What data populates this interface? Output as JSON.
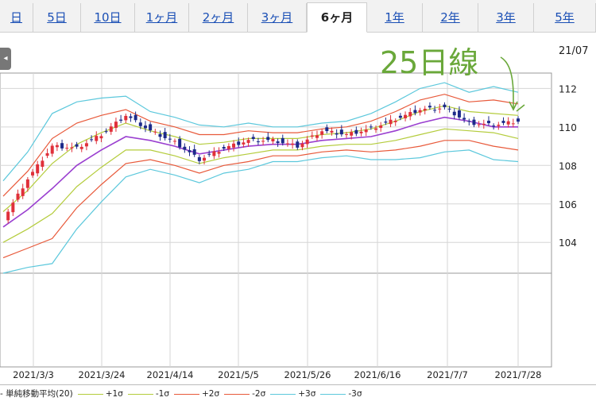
{
  "tabs": [
    {
      "label": "日",
      "active": false
    },
    {
      "label": "5日",
      "active": false
    },
    {
      "label": "10日",
      "active": false
    },
    {
      "label": "1ヶ月",
      "active": false
    },
    {
      "label": "2ヶ月",
      "active": false
    },
    {
      "label": "3ヶ月",
      "active": false
    },
    {
      "label": "6ヶ月",
      "active": true
    },
    {
      "label": "1年",
      "active": false
    },
    {
      "label": "2年",
      "active": false
    },
    {
      "label": "3年",
      "active": false
    },
    {
      "label": "5年",
      "active": false
    }
  ],
  "date_corner": "21/07",
  "annotation": "25日線",
  "colors": {
    "up_candle": "#e0303a",
    "down_candle": "#1c2a8a",
    "sma": "#9a3fd0",
    "sigma1": "#b4cc3c",
    "sigma2": "#e8593a",
    "sigma3": "#5cc8dc",
    "annotation": "#6aa83a"
  },
  "legend": [
    {
      "label": "単純移動平均(20)",
      "color": "#9a3fd0"
    },
    {
      "label": "+1σ",
      "color": "#b4cc3c"
    },
    {
      "label": "-1σ",
      "color": "#b4cc3c"
    },
    {
      "label": "+2σ",
      "color": "#e8593a"
    },
    {
      "label": "-2σ",
      "color": "#e8593a"
    },
    {
      "label": "+3σ",
      "color": "#5cc8dc"
    },
    {
      "label": "-3σ",
      "color": "#5cc8dc"
    }
  ],
  "chart_data": {
    "type": "line",
    "title": "",
    "xlabel": "",
    "ylabel": "",
    "ylim": [
      102.4,
      112.8
    ],
    "y_ticks": [
      104,
      106,
      108,
      110,
      112
    ],
    "x_tick_labels": [
      "2021/3/3",
      "2021/3/24",
      "2021/4/14",
      "2021/5/5",
      "2021/5/26",
      "2021/6/16",
      "2021/7/7",
      "2021/7/28"
    ],
    "grid": true,
    "x": [
      "2021/2/17",
      "2021/3/3",
      "2021/3/10",
      "2021/3/17",
      "2021/3/24",
      "2021/3/31",
      "2021/4/7",
      "2021/4/14",
      "2021/4/21",
      "2021/4/28",
      "2021/5/5",
      "2021/5/12",
      "2021/5/19",
      "2021/5/26",
      "2021/6/2",
      "2021/6/9",
      "2021/6/16",
      "2021/6/23",
      "2021/6/30",
      "2021/7/7",
      "2021/7/14",
      "2021/7/21"
    ],
    "close": [
      105.2,
      107.3,
      109.0,
      108.9,
      109.6,
      110.6,
      109.8,
      109.2,
      108.3,
      108.9,
      109.3,
      109.3,
      109.0,
      109.8,
      109.6,
      109.9,
      110.4,
      110.9,
      111.0,
      110.2,
      110.1,
      110.3
    ],
    "series": [
      {
        "name": "単純移動平均(20)",
        "values": [
          104.8,
          105.7,
          106.8,
          108.0,
          108.8,
          109.5,
          109.3,
          109.0,
          108.6,
          108.8,
          109.0,
          109.1,
          109.1,
          109.3,
          109.4,
          109.5,
          109.8,
          110.2,
          110.5,
          110.3,
          110.0,
          110.0
        ]
      },
      {
        "name": "+1σ",
        "values": [
          105.6,
          106.7,
          108.1,
          109.1,
          109.7,
          110.2,
          109.8,
          109.5,
          109.1,
          109.2,
          109.4,
          109.4,
          109.4,
          109.6,
          109.7,
          109.9,
          110.3,
          110.8,
          111.1,
          110.8,
          110.7,
          110.6
        ]
      },
      {
        "name": "-1σ",
        "values": [
          104.0,
          104.7,
          105.5,
          106.9,
          107.9,
          108.8,
          108.8,
          108.5,
          108.1,
          108.4,
          108.6,
          108.8,
          108.8,
          109.0,
          109.1,
          109.1,
          109.3,
          109.6,
          109.9,
          109.8,
          109.7,
          109.4
        ]
      },
      {
        "name": "+2σ",
        "values": [
          106.4,
          107.7,
          109.4,
          110.2,
          110.6,
          110.9,
          110.3,
          110.0,
          109.6,
          109.6,
          109.8,
          109.7,
          109.7,
          109.9,
          110.0,
          110.3,
          110.8,
          111.4,
          111.7,
          111.3,
          111.4,
          111.2
        ]
      },
      {
        "name": "-2σ",
        "values": [
          103.2,
          103.7,
          104.2,
          105.8,
          107.0,
          108.1,
          108.3,
          108.0,
          107.6,
          108.0,
          108.2,
          108.5,
          108.5,
          108.7,
          108.8,
          108.7,
          108.8,
          109.0,
          109.3,
          109.3,
          109.0,
          108.8
        ]
      },
      {
        "name": "+3σ",
        "values": [
          107.2,
          108.7,
          110.7,
          111.3,
          111.5,
          111.6,
          110.8,
          110.5,
          110.1,
          110.0,
          110.2,
          110.0,
          110.0,
          110.2,
          110.3,
          110.7,
          111.3,
          112.0,
          112.3,
          111.8,
          112.1,
          111.8
        ]
      },
      {
        "name": "-3σ",
        "values": [
          102.4,
          102.7,
          102.9,
          104.7,
          106.1,
          107.4,
          107.8,
          107.5,
          107.1,
          107.6,
          107.8,
          108.2,
          108.2,
          108.4,
          108.5,
          108.3,
          108.3,
          108.4,
          108.7,
          108.8,
          108.3,
          108.2
        ]
      }
    ]
  }
}
